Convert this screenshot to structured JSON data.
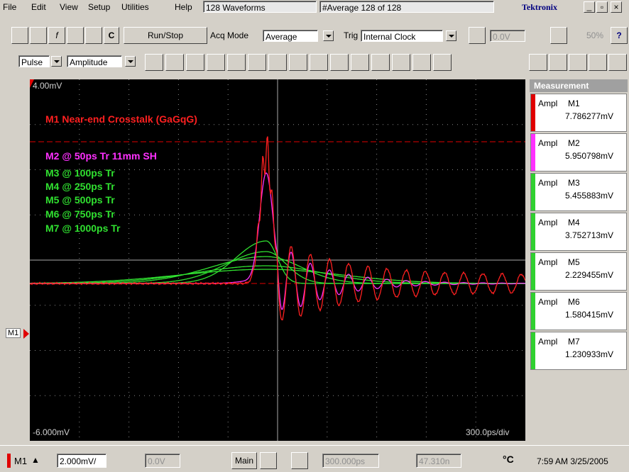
{
  "menu": [
    "File",
    "Edit",
    "View",
    "Setup",
    "Utilities",
    "Help"
  ],
  "status": {
    "waveforms": "128 Waveforms",
    "average": "#Average 128 of 128",
    "brand": "Tektronix"
  },
  "toolbar": {
    "c": "C",
    "run_stop": "Run/Stop",
    "acq_mode_label": "Acq Mode",
    "acq_mode": "Average",
    "trig_label": "Trig",
    "trig_source": "Internal Clock",
    "trig_level": "0.0V",
    "percent": "50%"
  },
  "toolbar2": {
    "measure_type": "Pulse",
    "measure": "Amplitude"
  },
  "display": {
    "top_label": "4.00mV",
    "bottom_label": "-6.000mV",
    "timebase": "300.0ps/div",
    "marker": "M1",
    "annotations": [
      {
        "text": "M1 Near-end Crosstalk  (GaGqG)",
        "color": "#ff2020"
      },
      {
        "text": "M2 @ 50ps Tr 11mm SH",
        "color": "#ff30ff"
      },
      {
        "text": "M3 @ 100ps Tr",
        "color": "#30e030"
      },
      {
        "text": "M4 @ 250ps Tr",
        "color": "#30e030"
      },
      {
        "text": "M5 @ 500ps Tr",
        "color": "#30e030"
      },
      {
        "text": "M6 @ 750ps Tr",
        "color": "#30e030"
      },
      {
        "text": "M7 @ 1000ps Tr",
        "color": "#30e030"
      }
    ]
  },
  "measurement": {
    "title": "Measurement",
    "items": [
      {
        "label": "Ampl",
        "source": "M1",
        "value": "7.786277mV",
        "color": "#e00000"
      },
      {
        "label": "Ampl",
        "source": "M2",
        "value": "5.950798mV",
        "color": "#ff30ff"
      },
      {
        "label": "Ampl",
        "source": "M3",
        "value": "5.455883mV",
        "color": "#30d030"
      },
      {
        "label": "Ampl",
        "source": "M4",
        "value": "3.752713mV",
        "color": "#30d030"
      },
      {
        "label": "Ampl",
        "source": "M5",
        "value": "2.229455mV",
        "color": "#30d030"
      },
      {
        "label": "Ampl",
        "source": "M6",
        "value": "1.580415mV",
        "color": "#30d030"
      },
      {
        "label": "Ampl",
        "source": "M7",
        "value": "1.230933mV",
        "color": "#30d030"
      }
    ]
  },
  "bottom": {
    "channel": "M1",
    "scale": "2.000mV/",
    "offset": "0.0V",
    "main": "Main",
    "position": "300.000ps",
    "delay": "47.310n",
    "temp": "°C",
    "clock": "7:59 AM 3/25/2005"
  }
}
